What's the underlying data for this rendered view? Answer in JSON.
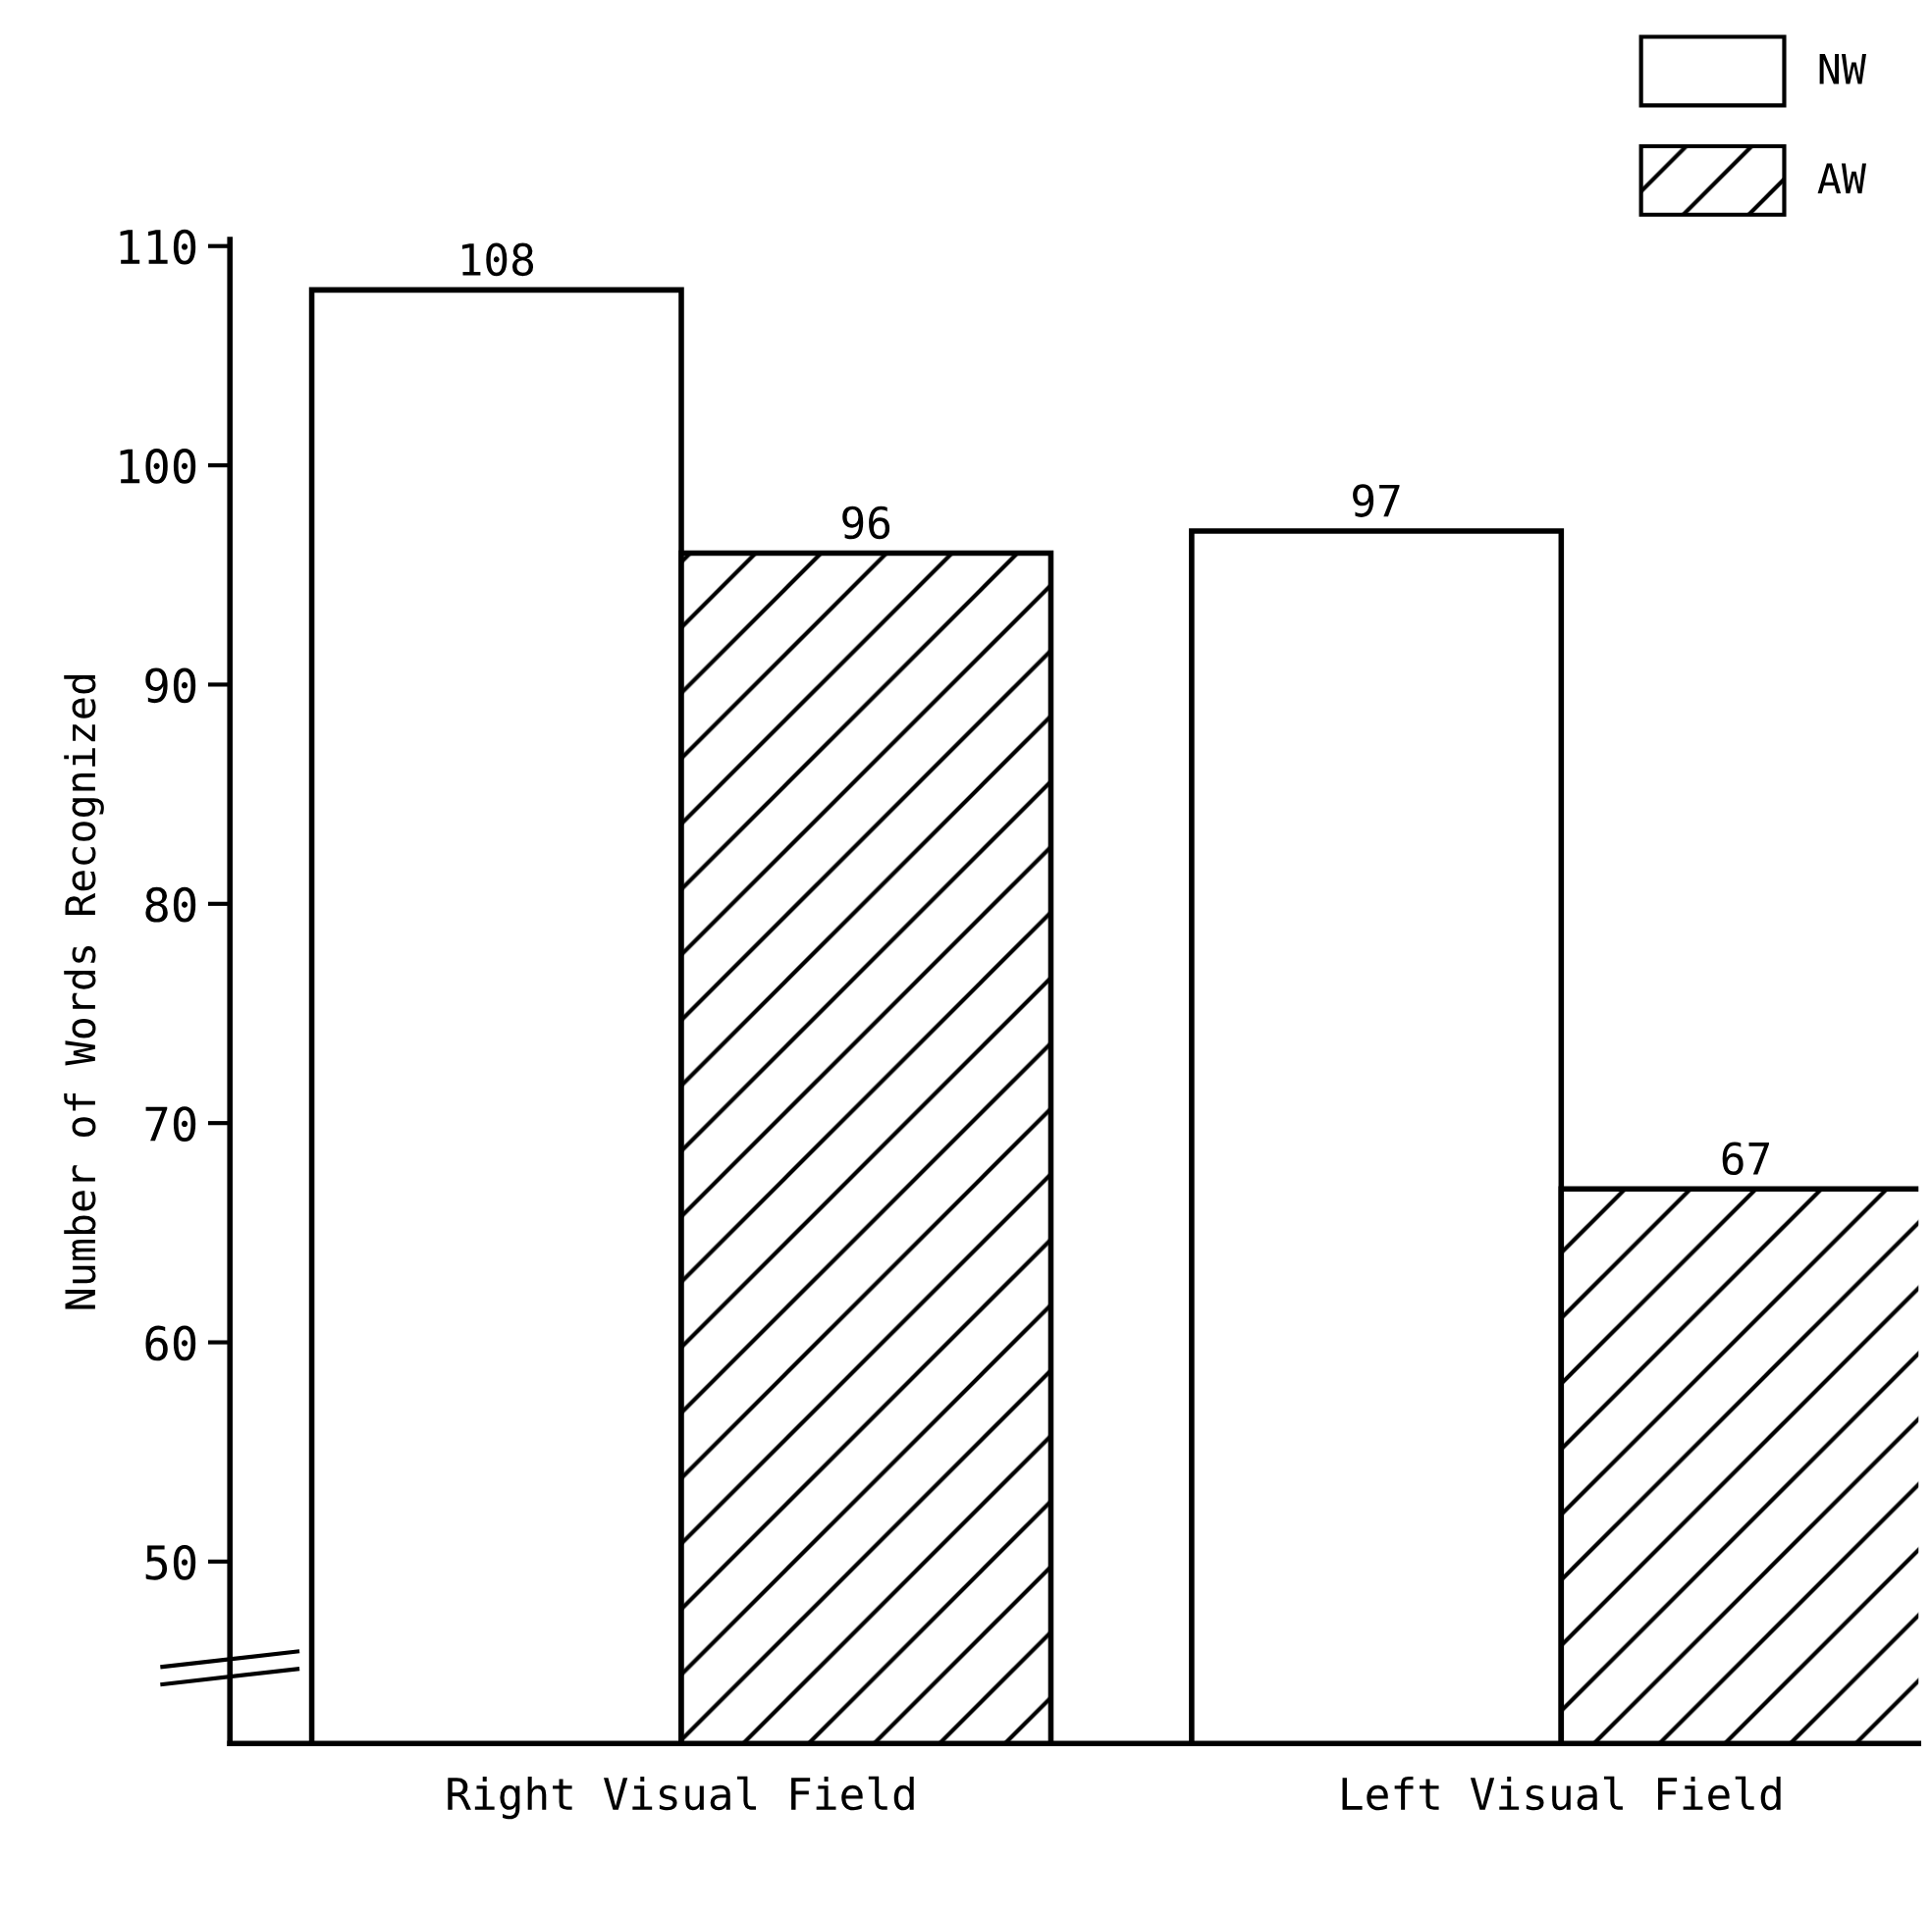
{
  "chart_data": {
    "type": "bar",
    "ylabel": "Number of Words Recognized",
    "categories": [
      "Right Visual Field",
      "Left Visual Field"
    ],
    "series": [
      {
        "name": "NW",
        "color": "#ffffff",
        "values": [
          108,
          97
        ]
      },
      {
        "name": "AW",
        "color": "#000000",
        "values": [
          96,
          67
        ]
      }
    ],
    "ylim": [
      41.7,
      110.3
    ],
    "yticks": [
      50,
      60,
      70,
      80,
      90,
      100,
      110
    ],
    "data_labels": true,
    "grid": false,
    "legend": "top right"
  }
}
